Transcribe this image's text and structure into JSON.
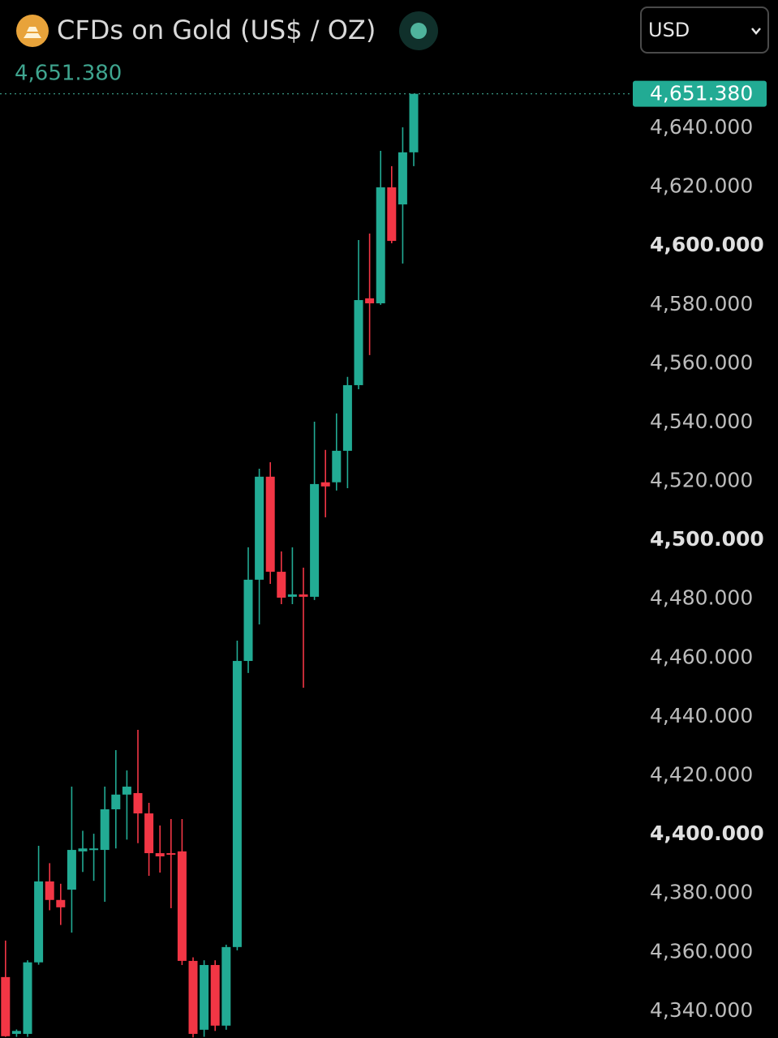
{
  "chart_data": {
    "type": "candlestick",
    "title": "CFDs on Gold (US$ / OZ)",
    "currency": "USD",
    "last_price": {
      "value": 4651.38,
      "label": "4,651.380"
    },
    "up_color": "#22ab94",
    "down_color": "#f23645",
    "open": [
      4351.3,
      4332,
      4332.0,
      4356.3,
      4383.8,
      4377.5,
      4381.0,
      4394,
      4394.5,
      4394.5,
      4408.3,
      4413.3,
      4413.8,
      4406.9,
      4393.4,
      4393.4,
      4394,
      4356.8,
      4333.4,
      4355.4,
      4334.8,
      4361.5,
      4458.7,
      4486.3,
      4521.3,
      4489,
      4480.5,
      4481.3,
      4480.5,
      4519.4,
      4519.4,
      4530.1,
      4552.4,
      4581.9,
      4580.2,
      4619.6,
      4613.8,
      4631.5
    ],
    "high": [
      4363.7,
      4333.5,
      4357,
      4395.9,
      4390,
      4383,
      4416,
      4401,
      4400,
      4416,
      4428.4,
      4421.5,
      4435.3,
      4410.5,
      4402.8,
      4405,
      4405,
      4358,
      4357,
      4357,
      4362.3,
      4465.6,
      4497.3,
      4524,
      4526.2,
      4495.9,
      4497.3,
      4490.4,
      4540,
      4530.4,
      4542.8,
      4555.2,
      4601.7,
      4603.9,
      4632,
      4626.8,
      4640,
      4651.38
    ],
    "low": [
      4331,
      4331,
      4331,
      4355.5,
      4374,
      4369,
      4366.4,
      4387,
      4384,
      4376.9,
      4395,
      4398,
      4396.8,
      4385.7,
      4386.8,
      4374.7,
      4355.4,
      4330.8,
      4331,
      4333,
      4333.4,
      4360.4,
      4454.6,
      4471.1,
      4484.9,
      4478,
      4478,
      4449.6,
      4479.4,
      4507.5,
      4516.6,
      4517.4,
      4551,
      4562.6,
      4579.7,
      4600.6,
      4593.7,
      4626.8
    ],
    "close": [
      4331.2,
      4333,
      4356.3,
      4383.8,
      4377.5,
      4375,
      4394.5,
      4395,
      4395,
      4408.3,
      4413.3,
      4416,
      4406.9,
      4393.4,
      4392.3,
      4392.9,
      4356.8,
      4332,
      4355.4,
      4334.8,
      4361.5,
      4458.7,
      4486.3,
      4521.3,
      4489,
      4480.2,
      4481.3,
      4480.5,
      4518.8,
      4518,
      4530.1,
      4552.4,
      4581.3,
      4580.2,
      4619.6,
      4601.4,
      4631.5,
      4651.38
    ],
    "ylim": [
      4330.6,
      4655.7
    ],
    "yticks": [
      {
        "value": 4340,
        "label": "4,340.000"
      },
      {
        "value": 4360,
        "label": "4,360.000"
      },
      {
        "value": 4380,
        "label": "4,380.000"
      },
      {
        "value": 4400,
        "label": "4,400.000"
      },
      {
        "value": 4420,
        "label": "4,420.000"
      },
      {
        "value": 4440,
        "label": "4,440.000"
      },
      {
        "value": 4460,
        "label": "4,460.000"
      },
      {
        "value": 4480,
        "label": "4,480.000"
      },
      {
        "value": 4500,
        "label": "4,500.000"
      },
      {
        "value": 4520,
        "label": "4,520.000"
      },
      {
        "value": 4540,
        "label": "4,540.000"
      },
      {
        "value": 4560,
        "label": "4,560.000"
      },
      {
        "value": 4580,
        "label": "4,580.000"
      },
      {
        "value": 4600,
        "label": "4,600.000"
      },
      {
        "value": 4620,
        "label": "4,620.000"
      },
      {
        "value": 4640,
        "label": "4,640.000"
      }
    ],
    "grid": false
  }
}
